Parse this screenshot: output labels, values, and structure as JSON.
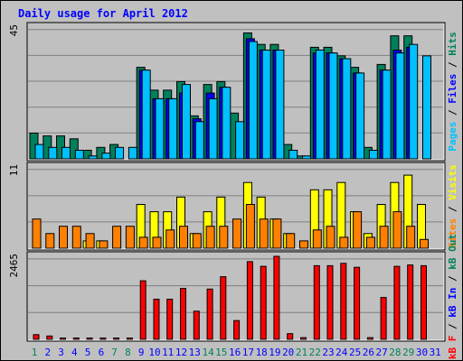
{
  "chart_data": {
    "type": "bar",
    "title": "Daily usage for April 2012",
    "categories": [
      "1",
      "2",
      "3",
      "4",
      "5",
      "6",
      "7",
      "8",
      "9",
      "10",
      "11",
      "12",
      "13",
      "14",
      "15",
      "16",
      "17",
      "18",
      "19",
      "20",
      "21",
      "22",
      "23",
      "24",
      "25",
      "26",
      "27",
      "28",
      "29",
      "30",
      "31"
    ],
    "weekend_days": [
      "1",
      "7",
      "8",
      "14",
      "15",
      "21",
      "22",
      "28",
      "29"
    ],
    "panels": [
      {
        "id": "top",
        "max_label": "45",
        "ylim": [
          0,
          47
        ],
        "ylabel": {
          "parts": [
            "Pages",
            " / ",
            "Files",
            " / ",
            "Hits"
          ]
        },
        "series": [
          {
            "name": "Hits",
            "color": "#00805c",
            "values": [
              9,
              8,
              8,
              7,
              3,
              4,
              5,
              0,
              32,
              24,
              24,
              27,
              15,
              26,
              27,
              16,
              44,
              40,
              40,
              5,
              1,
              39,
              39,
              36,
              32,
              4,
              33,
              43,
              43,
              0,
              0
            ]
          },
          {
            "name": "Files",
            "color": "#0000ff",
            "values": [
              0,
              0,
              0,
              0,
              0,
              0,
              0,
              0,
              31,
              21,
              21,
              23,
              14,
              23,
              25,
              0,
              42,
              38,
              38,
              0,
              0,
              37,
              37,
              35,
              30,
              0,
              31,
              38,
              39,
              0,
              0
            ]
          },
          {
            "name": "Pages",
            "color": "#00c0ff",
            "values": [
              5,
              4,
              4,
              3,
              1,
              2,
              4,
              4,
              31,
              21,
              21,
              26,
              13,
              21,
              25,
              13,
              41,
              38,
              38,
              3,
              1,
              38,
              37,
              35,
              30,
              3,
              31,
              37,
              40,
              36,
              0
            ]
          }
        ]
      },
      {
        "id": "middle",
        "max_label": "11",
        "ylim": [
          0,
          11.5
        ],
        "ylabel": {
          "parts": [
            "Sites",
            " / ",
            "Visits"
          ]
        },
        "series": [
          {
            "name": "Visits",
            "color": "#ffff00",
            "values": [
              0,
              0,
              0,
              0,
              1,
              1,
              0,
              0,
              6,
              5,
              5,
              7,
              2,
              5,
              7,
              0,
              9,
              7,
              4,
              2,
              0,
              8,
              8,
              9,
              5,
              2,
              6,
              9,
              10,
              6,
              0
            ]
          },
          {
            "name": "Sites",
            "color": "#ff8000",
            "values": [
              4,
              2,
              3,
              3,
              2,
              1,
              3,
              3,
              1.5,
              1.5,
              2.5,
              3,
              2,
              3,
              3,
              4,
              6,
              4,
              4,
              2,
              1,
              2.5,
              3,
              1.5,
              5,
              1.5,
              3,
              5,
              3,
              1.2,
              0
            ]
          }
        ]
      },
      {
        "id": "bottom",
        "max_label": "2465",
        "ylim": [
          0,
          2560
        ],
        "ylabel": {
          "parts": [
            "kB F",
            " / ",
            "kB In",
            " / ",
            "kB Out"
          ]
        },
        "series": [
          {
            "name": "kB F",
            "color": "#ff0000",
            "values": [
              140,
              100,
              40,
              40,
              40,
              40,
              40,
              40,
              1750,
              1200,
              1200,
              1520,
              840,
              1500,
              1870,
              560,
              2320,
              2180,
              2480,
              170,
              50,
              2200,
              2200,
              2270,
              2150,
              50,
              1250,
              2180,
              2220,
              2200,
              0
            ]
          }
        ]
      }
    ]
  },
  "colors": {
    "title": "#0000ff",
    "weekday_label": "#0000ff",
    "weekend_label": "#00805c",
    "panel_bg": "#c0c0c0",
    "grid": "#808080",
    "ylabel_parts": {
      "Pages": "#00c0ff",
      "Files": "#0000ff",
      "Hits": "#00805c",
      "Sites": "#ff8000",
      "Visits": "#ffff00",
      "kB F": "#ff0000",
      "kB In": "#0000ff",
      "kB Out": "#00805c",
      " / ": "#000000"
    }
  }
}
